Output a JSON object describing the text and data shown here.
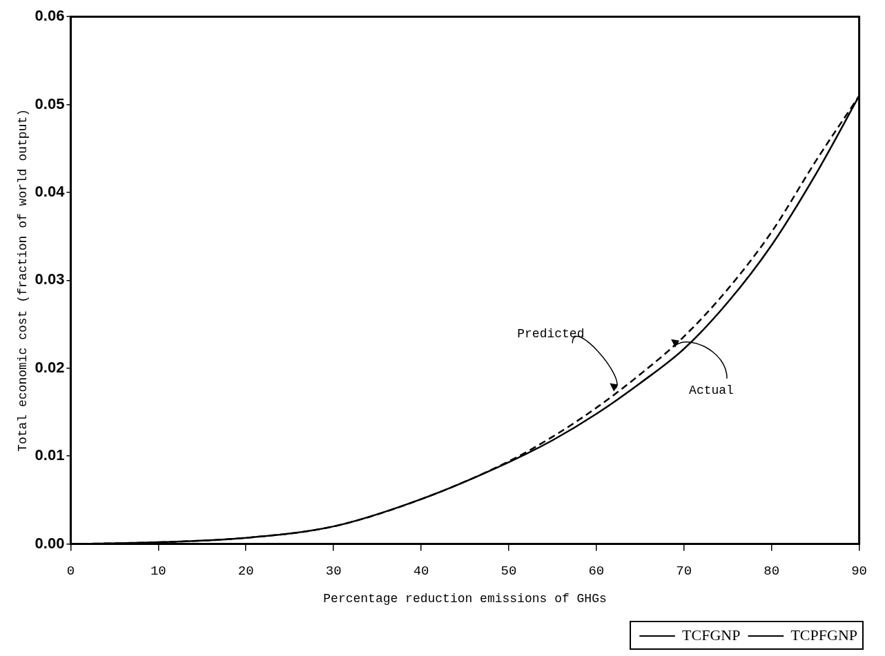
{
  "chart_data": {
    "type": "line",
    "xlabel": "Percentage reduction emissions of GHGs",
    "ylabel": "Total economic cost (fraction of world output)",
    "x": [
      0,
      10,
      20,
      30,
      40,
      50,
      55,
      60,
      65,
      70,
      75,
      80,
      85,
      90
    ],
    "series": [
      {
        "name": "TCFGNP",
        "color": "#000000",
        "line_style": "solid",
        "values": [
          0,
          0.0002,
          0.0007,
          0.002,
          0.0051,
          0.0093,
          0.0118,
          0.0148,
          0.0183,
          0.0222,
          0.0275,
          0.034,
          0.042,
          0.051
        ]
      },
      {
        "name": "TCPFGNP",
        "color": "#000000",
        "line_style": "dashed",
        "values": [
          0,
          0.0002,
          0.0007,
          0.002,
          0.0051,
          0.0094,
          0.0122,
          0.0155,
          0.0193,
          0.0236,
          0.029,
          0.0355,
          0.0435,
          0.051
        ]
      }
    ],
    "xlim": [
      0,
      90
    ],
    "xticks": [
      0,
      10,
      20,
      30,
      40,
      50,
      60,
      70,
      80,
      90
    ],
    "ylim": [
      0,
      0.06
    ],
    "yticks": [
      {
        "value": 0,
        "label": "0.00"
      },
      {
        "value": 0.01,
        "label": "0.01"
      },
      {
        "value": 0.02,
        "label": "0.02"
      },
      {
        "value": 0.03,
        "label": "0.03"
      },
      {
        "value": 0.04,
        "label": "0.04"
      },
      {
        "value": 0.05,
        "label": "0.05"
      },
      {
        "value": 0.06,
        "label": "0.06"
      }
    ],
    "annotations": [
      {
        "text": "Predicted",
        "x": 62,
        "y": 0.0172
      },
      {
        "text": "Actual",
        "x": 69,
        "y": 0.0222
      }
    ],
    "legend": "bottom right",
    "grid": false,
    "marker": "none"
  }
}
